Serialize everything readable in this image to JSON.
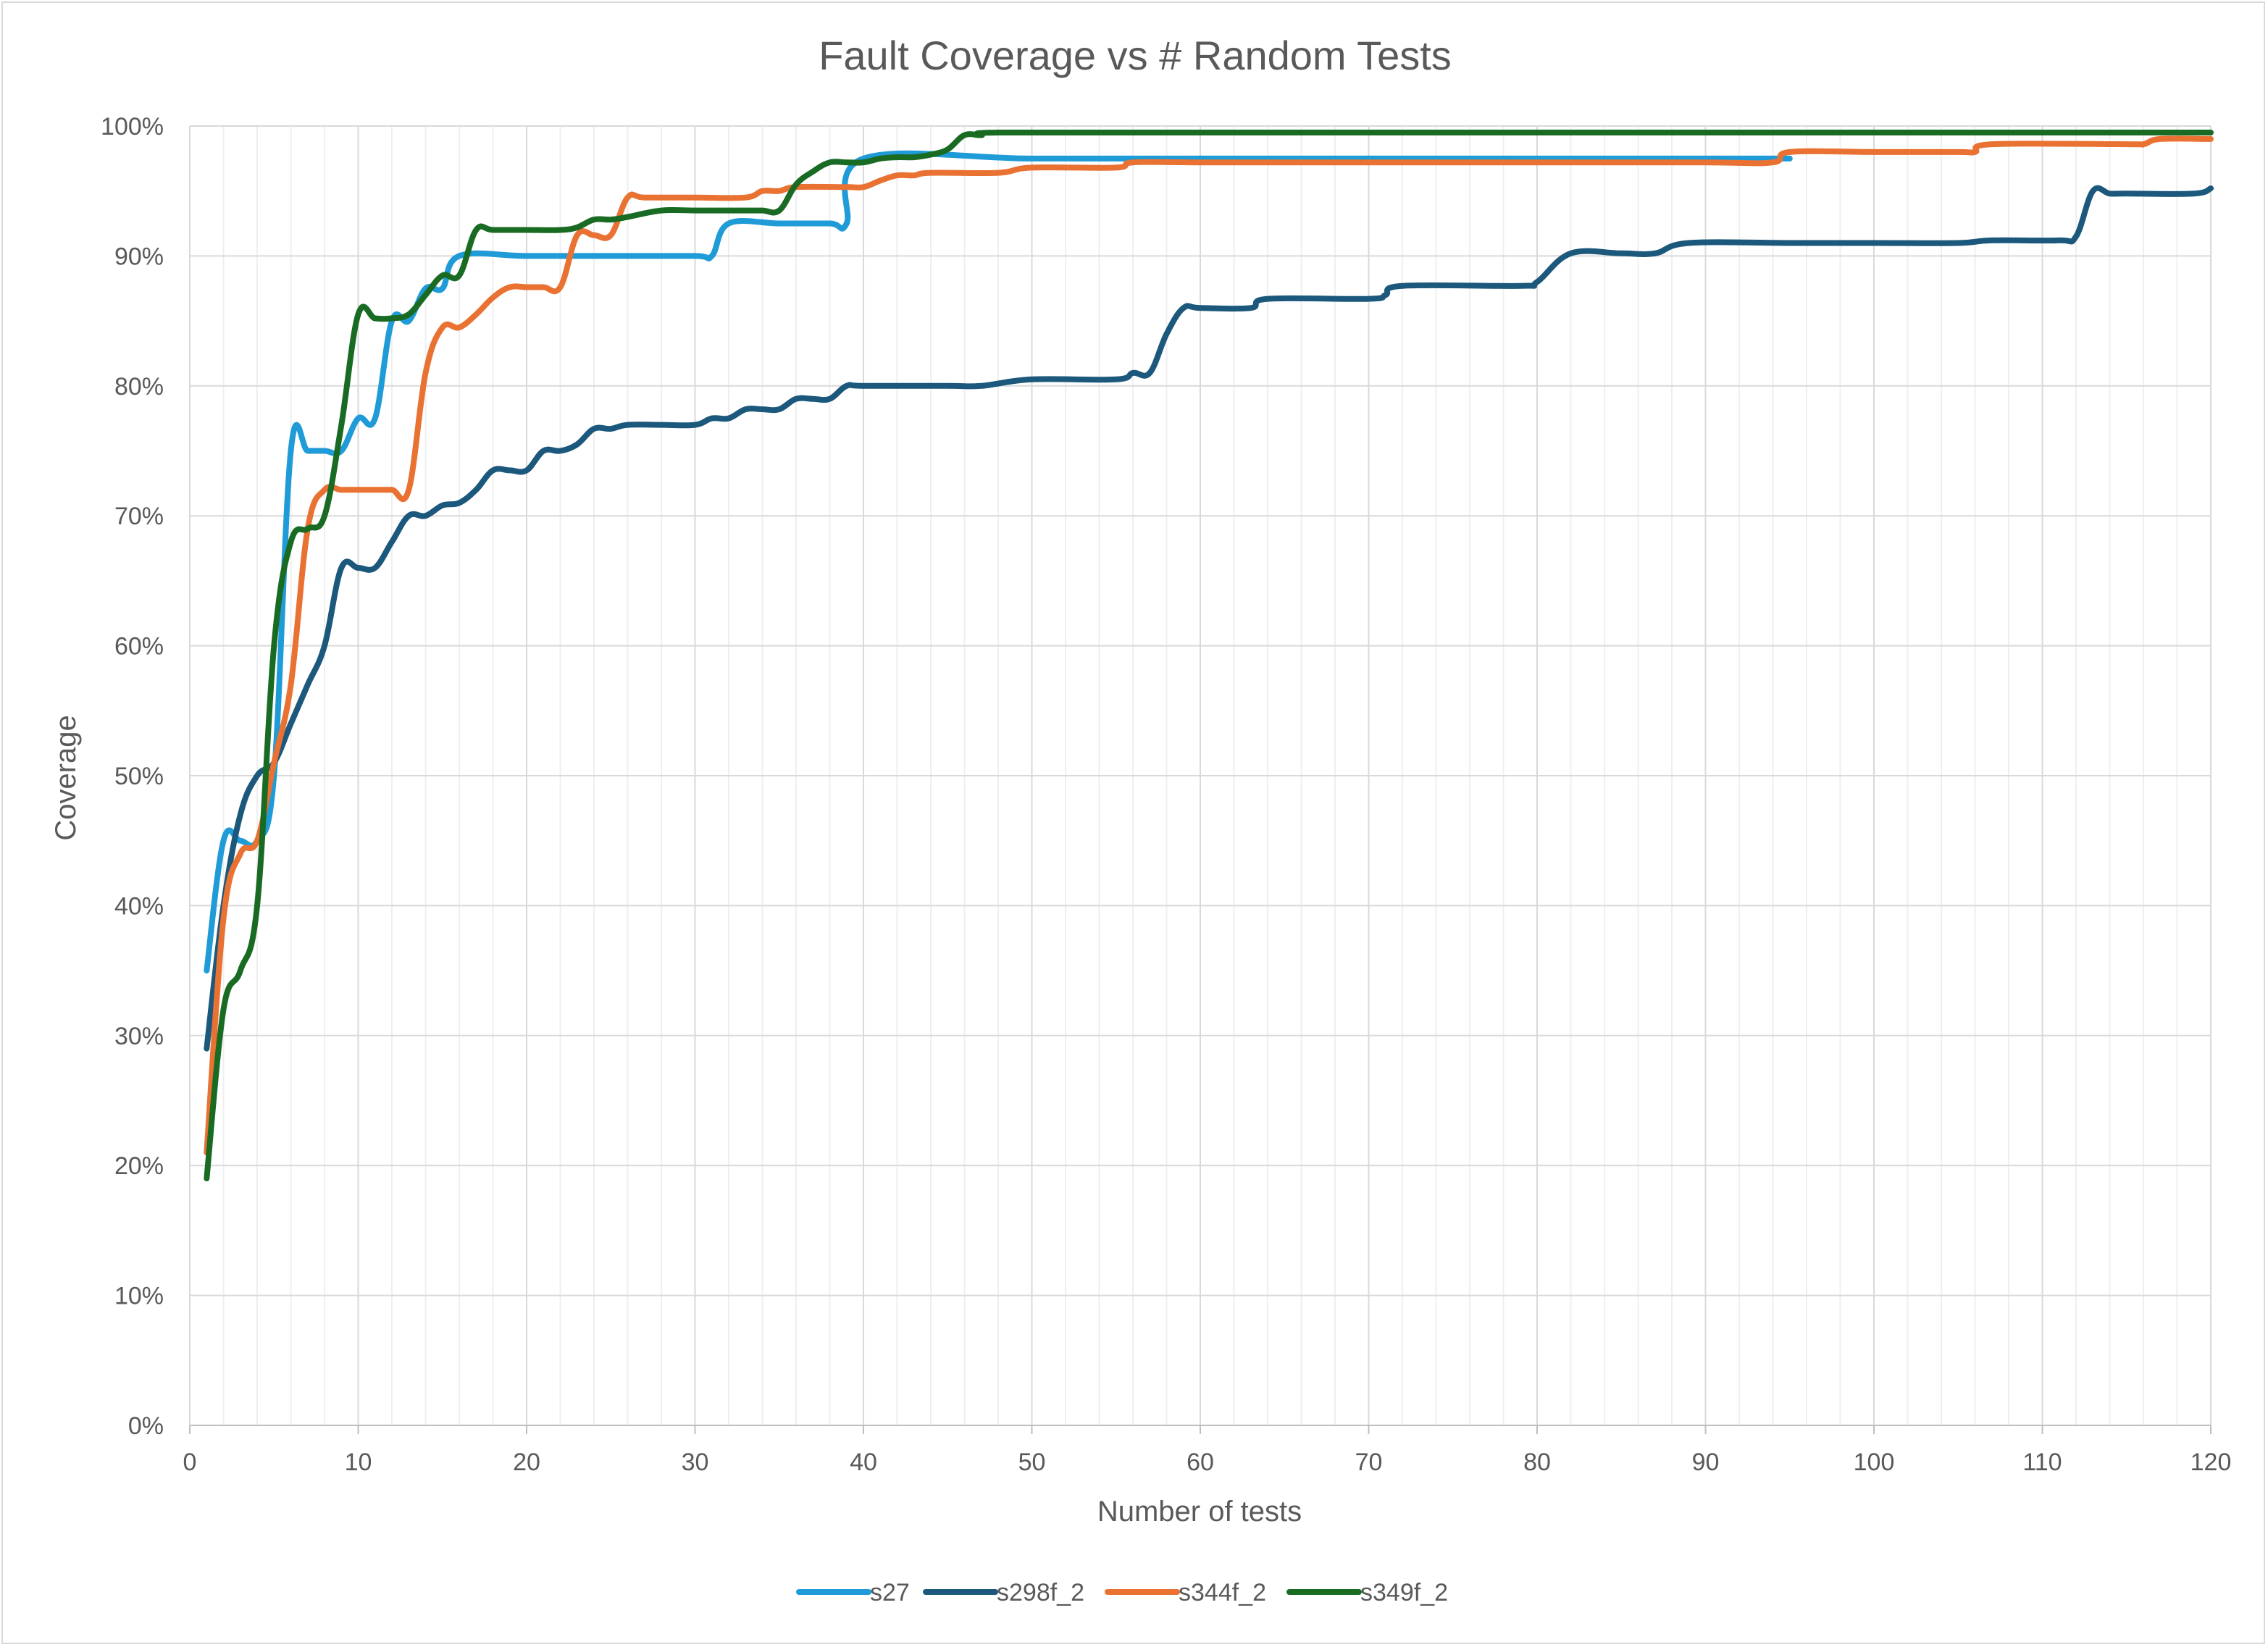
{
  "chart_data": {
    "type": "line",
    "title": "Fault Coverage vs # Random Tests",
    "xlabel": "Number of tests",
    "ylabel": "Coverage",
    "xlim": [
      0,
      120
    ],
    "ylim": [
      0,
      1
    ],
    "x_ticks": [
      0,
      10,
      20,
      30,
      40,
      50,
      60,
      70,
      80,
      90,
      100,
      110,
      120
    ],
    "y_ticks": [
      "0%",
      "10%",
      "20%",
      "30%",
      "40%",
      "50%",
      "60%",
      "70%",
      "80%",
      "90%",
      "100%"
    ],
    "grid": "major and minor gridlines",
    "legend_position": "bottom",
    "series": [
      {
        "name": "s27",
        "color": "#1f9bd7",
        "points": [
          [
            1,
            0.35
          ],
          [
            2,
            0.45
          ],
          [
            3,
            0.45
          ],
          [
            4,
            0.45
          ],
          [
            5,
            0.5
          ],
          [
            6,
            0.75
          ],
          [
            7,
            0.75
          ],
          [
            8,
            0.75
          ],
          [
            9,
            0.75
          ],
          [
            10,
            0.775
          ],
          [
            11,
            0.775
          ],
          [
            12,
            0.85
          ],
          [
            13,
            0.85
          ],
          [
            14,
            0.875
          ],
          [
            15,
            0.875
          ],
          [
            16,
            0.9
          ],
          [
            20,
            0.9
          ],
          [
            25,
            0.9
          ],
          [
            30,
            0.9
          ],
          [
            31,
            0.9
          ],
          [
            32,
            0.925
          ],
          [
            35,
            0.925
          ],
          [
            38,
            0.925
          ],
          [
            39,
            0.925
          ],
          [
            40,
            0.975
          ],
          [
            50,
            0.975
          ],
          [
            60,
            0.975
          ],
          [
            70,
            0.975
          ],
          [
            80,
            0.975
          ],
          [
            90,
            0.975
          ],
          [
            95,
            0.975
          ]
        ]
      },
      {
        "name": "s298f_2",
        "color": "#1b587c",
        "points": [
          [
            1,
            0.29
          ],
          [
            2,
            0.4
          ],
          [
            3,
            0.47
          ],
          [
            4,
            0.5
          ],
          [
            5,
            0.51
          ],
          [
            6,
            0.54
          ],
          [
            7,
            0.57
          ],
          [
            8,
            0.6
          ],
          [
            9,
            0.66
          ],
          [
            10,
            0.66
          ],
          [
            11,
            0.66
          ],
          [
            12,
            0.68
          ],
          [
            13,
            0.7
          ],
          [
            14,
            0.7
          ],
          [
            15,
            0.708
          ],
          [
            16,
            0.71
          ],
          [
            17,
            0.72
          ],
          [
            18,
            0.735
          ],
          [
            19,
            0.735
          ],
          [
            20,
            0.735
          ],
          [
            21,
            0.75
          ],
          [
            22,
            0.75
          ],
          [
            23,
            0.755
          ],
          [
            24,
            0.767
          ],
          [
            25,
            0.767
          ],
          [
            26,
            0.77
          ],
          [
            28,
            0.77
          ],
          [
            30,
            0.77
          ],
          [
            31,
            0.775
          ],
          [
            32,
            0.775
          ],
          [
            33,
            0.782
          ],
          [
            34,
            0.782
          ],
          [
            35,
            0.782
          ],
          [
            36,
            0.79
          ],
          [
            37,
            0.79
          ],
          [
            38,
            0.79
          ],
          [
            39,
            0.8
          ],
          [
            40,
            0.8
          ],
          [
            45,
            0.8
          ],
          [
            47,
            0.8
          ],
          [
            50,
            0.805
          ],
          [
            55,
            0.805
          ],
          [
            56,
            0.81
          ],
          [
            57,
            0.81
          ],
          [
            58,
            0.84
          ],
          [
            59,
            0.86
          ],
          [
            60,
            0.86
          ],
          [
            63,
            0.86
          ],
          [
            64,
            0.867
          ],
          [
            70,
            0.867
          ],
          [
            71,
            0.87
          ],
          [
            72,
            0.877
          ],
          [
            79,
            0.877
          ],
          [
            80,
            0.88
          ],
          [
            82,
            0.902
          ],
          [
            85,
            0.902
          ],
          [
            87,
            0.902
          ],
          [
            89,
            0.91
          ],
          [
            95,
            0.91
          ],
          [
            100,
            0.91
          ],
          [
            105,
            0.91
          ],
          [
            107,
            0.912
          ],
          [
            111,
            0.912
          ],
          [
            112,
            0.915
          ],
          [
            113,
            0.95
          ],
          [
            114,
            0.948
          ],
          [
            115,
            0.948
          ],
          [
            119,
            0.948
          ],
          [
            120,
            0.952
          ]
        ]
      },
      {
        "name": "s344f_2",
        "color": "#e97132",
        "points": [
          [
            1,
            0.21
          ],
          [
            2,
            0.39
          ],
          [
            3,
            0.44
          ],
          [
            4,
            0.45
          ],
          [
            5,
            0.51
          ],
          [
            6,
            0.57
          ],
          [
            7,
            0.69
          ],
          [
            8,
            0.72
          ],
          [
            9,
            0.72
          ],
          [
            10,
            0.72
          ],
          [
            11,
            0.72
          ],
          [
            12,
            0.72
          ],
          [
            13,
            0.72
          ],
          [
            14,
            0.81
          ],
          [
            15,
            0.845
          ],
          [
            16,
            0.845
          ],
          [
            17,
            0.855
          ],
          [
            18,
            0.868
          ],
          [
            19,
            0.876
          ],
          [
            20,
            0.876
          ],
          [
            21,
            0.876
          ],
          [
            22,
            0.876
          ],
          [
            23,
            0.916
          ],
          [
            24,
            0.916
          ],
          [
            25,
            0.916
          ],
          [
            26,
            0.945
          ],
          [
            27,
            0.945
          ],
          [
            30,
            0.945
          ],
          [
            33,
            0.945
          ],
          [
            34,
            0.95
          ],
          [
            35,
            0.95
          ],
          [
            36,
            0.953
          ],
          [
            39,
            0.953
          ],
          [
            40,
            0.953
          ],
          [
            41,
            0.958
          ],
          [
            42,
            0.962
          ],
          [
            43,
            0.962
          ],
          [
            44,
            0.964
          ],
          [
            48,
            0.964
          ],
          [
            50,
            0.968
          ],
          [
            55,
            0.968
          ],
          [
            56,
            0.972
          ],
          [
            60,
            0.972
          ],
          [
            70,
            0.972
          ],
          [
            80,
            0.972
          ],
          [
            90,
            0.972
          ],
          [
            94,
            0.972
          ],
          [
            95,
            0.98
          ],
          [
            100,
            0.98
          ],
          [
            105,
            0.98
          ],
          [
            106,
            0.98
          ],
          [
            107,
            0.986
          ],
          [
            115,
            0.986
          ],
          [
            116,
            0.986
          ],
          [
            117,
            0.99
          ],
          [
            120,
            0.99
          ]
        ]
      },
      {
        "name": "s349f_2",
        "color": "#196b24",
        "points": [
          [
            1,
            0.19
          ],
          [
            2,
            0.32
          ],
          [
            3,
            0.35
          ],
          [
            4,
            0.4
          ],
          [
            5,
            0.6
          ],
          [
            6,
            0.68
          ],
          [
            7,
            0.69
          ],
          [
            8,
            0.7
          ],
          [
            9,
            0.77
          ],
          [
            10,
            0.855
          ],
          [
            11,
            0.852
          ],
          [
            12,
            0.852
          ],
          [
            13,
            0.855
          ],
          [
            14,
            0.87
          ],
          [
            15,
            0.885
          ],
          [
            16,
            0.885
          ],
          [
            17,
            0.92
          ],
          [
            18,
            0.92
          ],
          [
            20,
            0.92
          ],
          [
            22,
            0.92
          ],
          [
            23,
            0.922
          ],
          [
            24,
            0.928
          ],
          [
            25,
            0.928
          ],
          [
            26,
            0.93
          ],
          [
            28,
            0.935
          ],
          [
            30,
            0.935
          ],
          [
            33,
            0.935
          ],
          [
            34,
            0.935
          ],
          [
            35,
            0.935
          ],
          [
            36,
            0.955
          ],
          [
            37,
            0.965
          ],
          [
            38,
            0.972
          ],
          [
            39,
            0.972
          ],
          [
            40,
            0.972
          ],
          [
            41,
            0.975
          ],
          [
            42,
            0.976
          ],
          [
            43,
            0.976
          ],
          [
            44,
            0.978
          ],
          [
            45,
            0.982
          ],
          [
            46,
            0.993
          ],
          [
            47,
            0.993
          ],
          [
            48,
            0.995
          ],
          [
            60,
            0.995
          ],
          [
            80,
            0.995
          ],
          [
            100,
            0.995
          ],
          [
            120,
            0.995
          ]
        ]
      }
    ]
  }
}
